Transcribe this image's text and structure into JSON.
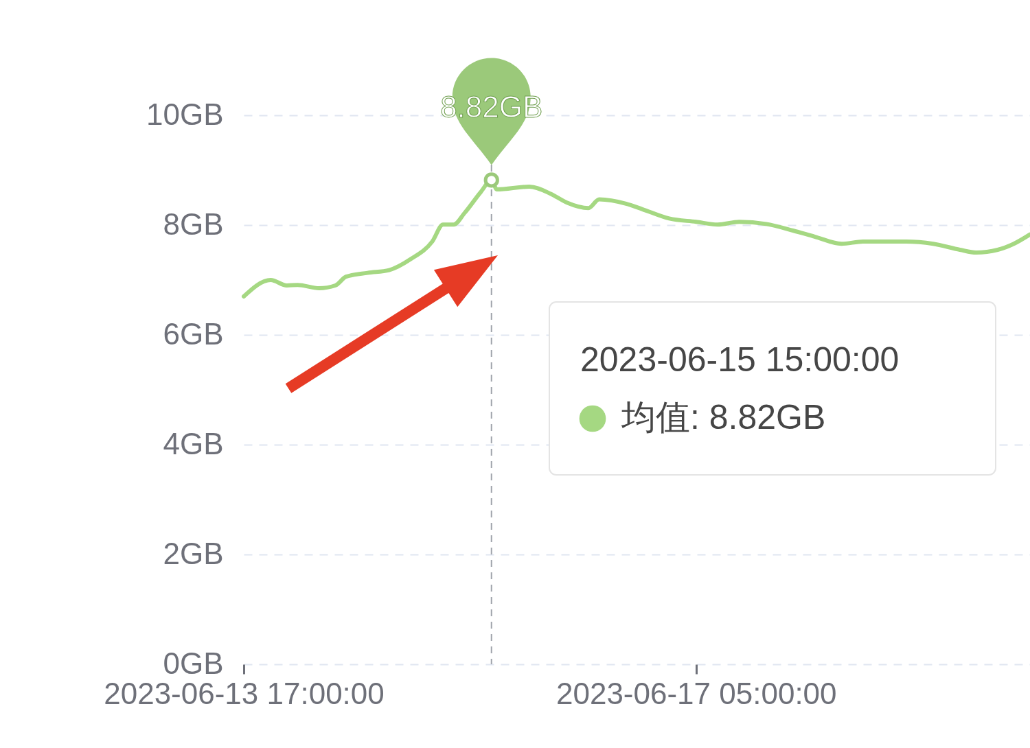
{
  "chart_data": {
    "type": "line",
    "x": [
      "2023-06-13T17:00",
      "2023-06-13T22:00",
      "2023-06-14T01:00",
      "2023-06-14T03:00",
      "2023-06-14T07:00",
      "2023-06-14T10:00",
      "2023-06-14T12:00",
      "2023-06-14T16:00",
      "2023-06-14T20:00",
      "2023-06-15T00:00",
      "2023-06-15T04:00",
      "2023-06-15T06:00",
      "2023-06-15T08:00",
      "2023-06-15T10:00",
      "2023-06-15T13:00",
      "2023-06-15T15:00",
      "2023-06-15T16:00",
      "2023-06-15T22:00",
      "2023-06-16T02:00",
      "2023-06-16T05:00",
      "2023-06-16T09:00",
      "2023-06-16T11:00",
      "2023-06-16T16:00",
      "2023-06-16T19:00",
      "2023-06-17T00:00",
      "2023-06-17T05:00",
      "2023-06-17T09:00",
      "2023-06-17T13:00",
      "2023-06-17T18:00",
      "2023-06-17T23:00",
      "2023-06-18T03:00",
      "2023-06-18T08:00",
      "2023-06-18T12:00",
      "2023-06-18T20:00",
      "2023-06-19T01:00",
      "2023-06-19T06:00",
      "2023-06-19T09:00",
      "2023-06-19T13:00",
      "2023-06-19T16:00",
      "2023-06-19T19:00"
    ],
    "series": [
      {
        "color": "#a5d882",
        "values": [
          6.7,
          7.0,
          6.9,
          6.91,
          6.85,
          6.9,
          7.06,
          7.13,
          7.18,
          7.38,
          7.7,
          8.01,
          8.01,
          8.22,
          8.6,
          8.82,
          8.65,
          8.7,
          8.57,
          8.41,
          8.31,
          8.47,
          8.39,
          8.29,
          8.12,
          8.06,
          8.01,
          8.06,
          8.02,
          7.9,
          7.79,
          7.66,
          7.7,
          7.7,
          7.66,
          7.55,
          7.5,
          7.55,
          7.66,
          7.83
        ]
      }
    ],
    "xlim": [
      "2023-06-13T17:00",
      "2023-06-19T19:00"
    ],
    "xticks": [
      {
        "value": "2023-06-13T17:00",
        "label": "2023-06-13 17:00:00"
      },
      {
        "value": "2023-06-17T05:00",
        "label": "2023-06-17 05:00:00"
      }
    ],
    "ylim": [
      0,
      10
    ],
    "yticks": [
      {
        "value": 0,
        "label": "0GB"
      },
      {
        "value": 2,
        "label": "2GB"
      },
      {
        "value": 4,
        "label": "4GB"
      },
      {
        "value": 6,
        "label": "6GB"
      },
      {
        "value": 8,
        "label": "8GB"
      },
      {
        "value": 10,
        "label": "10GB"
      }
    ],
    "grid": "y",
    "line_style": "solid",
    "ref_lines": [
      {
        "axis": "x",
        "value": "2023-06-15T15:00",
        "color": "#a0a4ab",
        "line_style": "dashed"
      }
    ],
    "annotations": [
      {
        "text": "8.82GB",
        "x": "2023-06-15T15:00",
        "y": 8.82
      },
      "2023-06-15 15:00:00",
      "均值: 8.82GB"
    ]
  }
}
